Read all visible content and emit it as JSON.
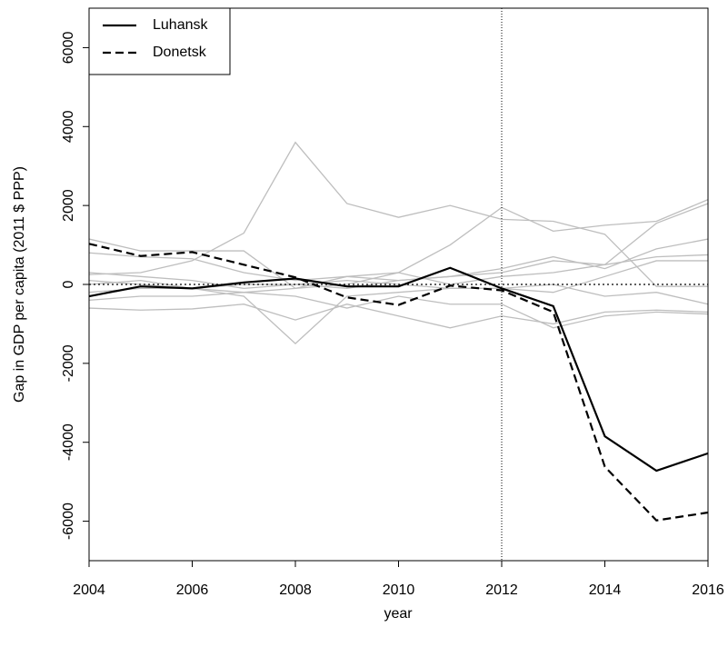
{
  "chart_data": {
    "type": "line",
    "xlabel": "year",
    "ylabel": "Gap in GDP per capita (2011 $ PPP)",
    "x": [
      2004,
      2005,
      2006,
      2007,
      2008,
      2009,
      2010,
      2011,
      2012,
      2013,
      2014,
      2015,
      2016
    ],
    "xlim": [
      2004,
      2016
    ],
    "xticks": [
      2004,
      2006,
      2008,
      2010,
      2012,
      2014,
      2016
    ],
    "ylim": [
      -7000,
      7000
    ],
    "yticks": [
      -6000,
      -4000,
      -2000,
      0,
      2000,
      4000,
      6000
    ],
    "hline": 0,
    "vline": 2012,
    "legend": "top-left",
    "background_series": [
      {
        "color": "#bebebe",
        "values": [
          250,
          300,
          600,
          1300,
          3600,
          2050,
          1700,
          2000,
          1650,
          1600,
          1270,
          -50,
          -50
        ]
      },
      {
        "color": "#bebebe",
        "values": [
          100,
          0,
          -100,
          -300,
          -1500,
          -300,
          -200,
          -100,
          -100,
          -200,
          200,
          600,
          600
        ]
      },
      {
        "color": "#bebebe",
        "values": [
          1150,
          850,
          850,
          850,
          -100,
          0,
          300,
          1000,
          1950,
          1350,
          1500,
          1600,
          2150
        ]
      },
      {
        "color": "#bebebe",
        "values": [
          -600,
          -650,
          -620,
          -500,
          -900,
          -500,
          -800,
          -1100,
          -800,
          -1000,
          -700,
          -650,
          -700
        ]
      },
      {
        "color": "#bebebe",
        "values": [
          800,
          700,
          650,
          300,
          100,
          200,
          100,
          200,
          300,
          600,
          500,
          700,
          750
        ]
      },
      {
        "color": "#bebebe",
        "values": [
          -200,
          -100,
          -100,
          -200,
          -100,
          200,
          300,
          0,
          200,
          300,
          500,
          1550,
          2050
        ]
      },
      {
        "color": "#bebebe",
        "values": [
          300,
          200,
          100,
          -100,
          0,
          -100,
          100,
          200,
          400,
          700,
          400,
          900,
          1150
        ]
      },
      {
        "color": "#bebebe",
        "values": [
          -400,
          -300,
          -300,
          -200,
          -300,
          -600,
          -300,
          -500,
          -500,
          -1100,
          -800,
          -700,
          -750
        ]
      },
      {
        "color": "#bebebe",
        "values": [
          0,
          100,
          -100,
          0,
          0,
          100,
          0,
          -100,
          -100,
          0,
          -300,
          -200,
          -500
        ]
      }
    ],
    "series": [
      {
        "name": "Luhansk",
        "color": "#000000",
        "dash": "solid",
        "values": [
          -300,
          -50,
          -100,
          50,
          150,
          -50,
          -50,
          420,
          -100,
          -550,
          -3850,
          -4720,
          -4280
        ]
      },
      {
        "name": "Donetsk",
        "color": "#000000",
        "dash": "dashed",
        "values": [
          1030,
          720,
          820,
          500,
          180,
          -330,
          -520,
          -30,
          -150,
          -700,
          -4620,
          -5980,
          -5780
        ]
      }
    ]
  }
}
